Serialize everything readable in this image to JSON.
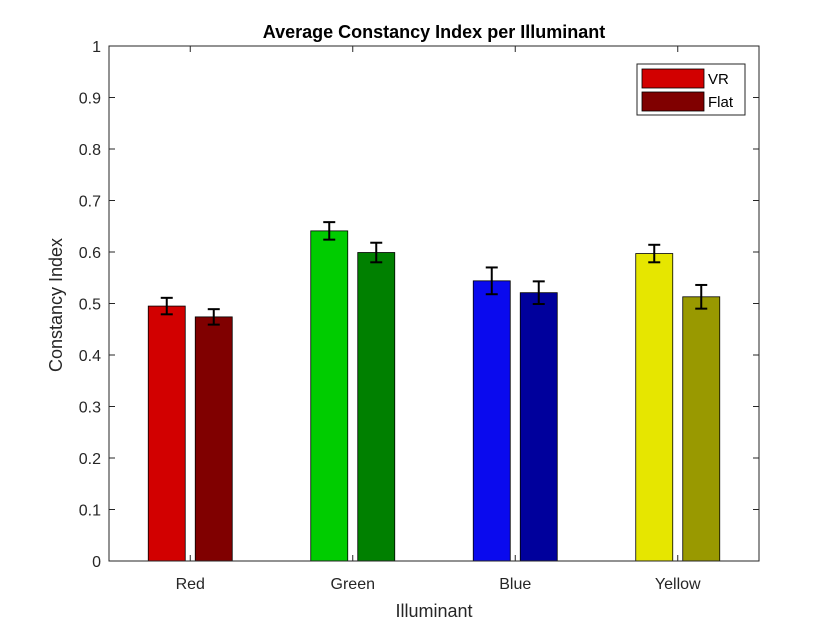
{
  "chart_data": {
    "type": "bar",
    "title": "Average Constancy Index per Illuminant",
    "xlabel": "Illuminant",
    "ylabel": "Constancy Index",
    "ylim": [
      0,
      1
    ],
    "yticks": [
      "0",
      "0.1",
      "0.2",
      "0.3",
      "0.4",
      "0.5",
      "0.6",
      "0.7",
      "0.8",
      "0.9",
      "1"
    ],
    "categories": [
      "Red",
      "Green",
      "Blue",
      "Yellow"
    ],
    "series": [
      {
        "name": "VR",
        "values": [
          0.495,
          0.641,
          0.544,
          0.597
        ],
        "errors": [
          0.016,
          0.017,
          0.026,
          0.017
        ],
        "colors": [
          "#d20000",
          "#00cc00",
          "#0a0aee",
          "#e6e600"
        ]
      },
      {
        "name": "Flat",
        "values": [
          0.474,
          0.599,
          0.521,
          0.513
        ],
        "errors": [
          0.015,
          0.019,
          0.022,
          0.023
        ],
        "colors": [
          "#800000",
          "#008000",
          "#00009c",
          "#999900"
        ]
      }
    ],
    "legend": {
      "placement": "top-right",
      "colors": [
        "#d20000",
        "#800000"
      ]
    },
    "grid": false
  }
}
